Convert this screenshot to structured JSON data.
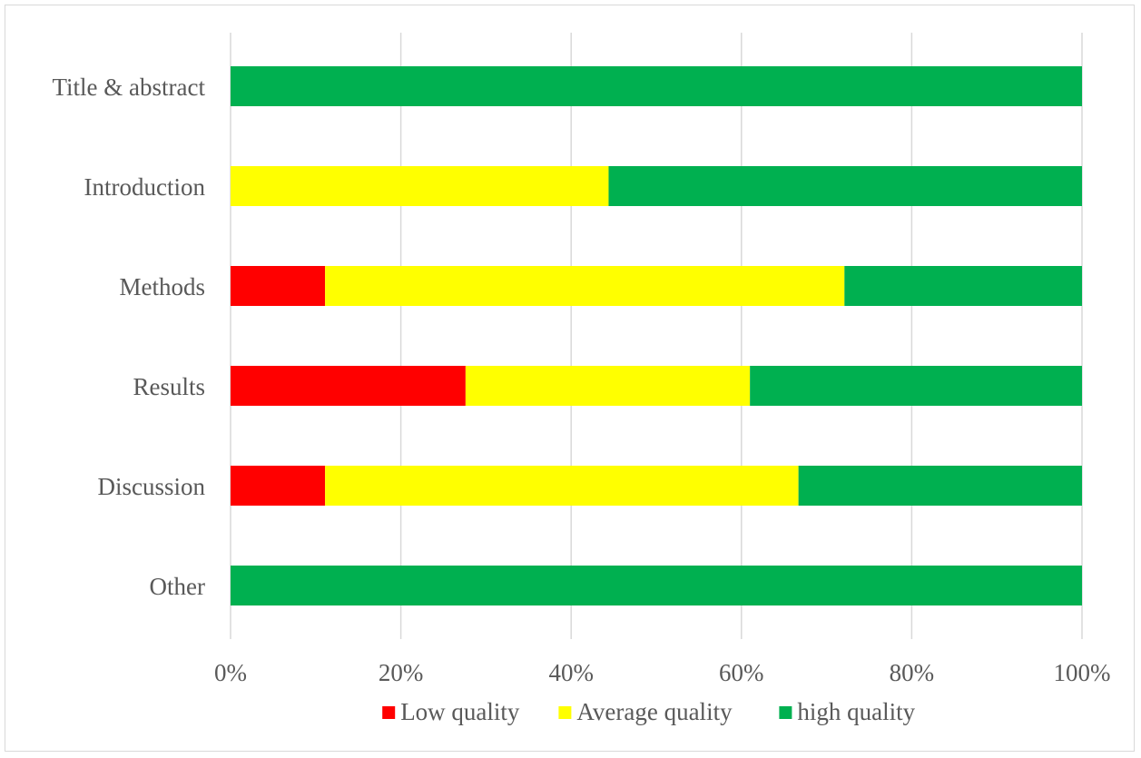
{
  "chart_data": {
    "type": "bar",
    "orientation": "horizontal",
    "stacked": "percent",
    "categories": [
      "Title & abstract",
      "Introduction",
      "Methods",
      "Results",
      "Discussion",
      "Other"
    ],
    "series": [
      {
        "name": "Low quality",
        "color": "#ff0000",
        "values": [
          0,
          0,
          11.1,
          27.6,
          11.1,
          0
        ]
      },
      {
        "name": "Average quality",
        "color": "#ffff00",
        "values": [
          0,
          44.4,
          61.0,
          33.4,
          55.6,
          0
        ]
      },
      {
        "name": "high quality",
        "color": "#00b050",
        "values": [
          100,
          55.6,
          27.9,
          39.0,
          33.3,
          100
        ]
      }
    ],
    "x_ticks": [
      "0%",
      "20%",
      "40%",
      "60%",
      "80%",
      "100%"
    ],
    "xlim": [
      0,
      100
    ],
    "grid": "vertical",
    "legend_position": "bottom",
    "title": "",
    "xlabel": "",
    "ylabel": ""
  }
}
